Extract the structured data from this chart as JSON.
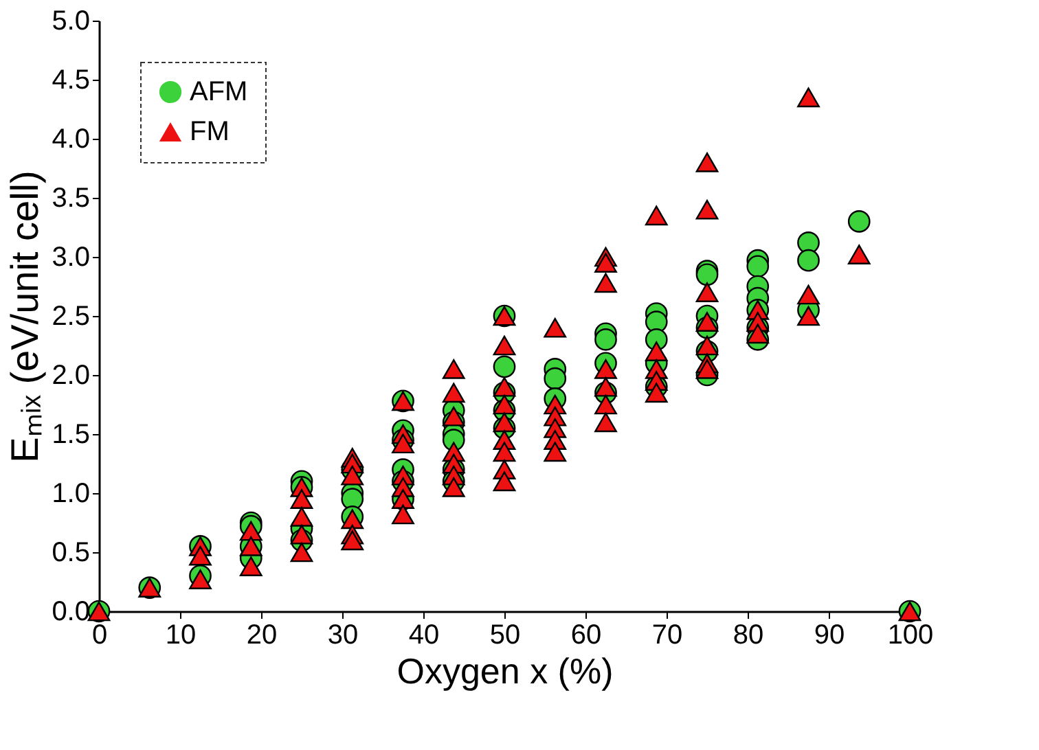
{
  "chart_data": {
    "type": "scatter",
    "xlabel": "Oxygen x (%)",
    "ylabel": "Eₘᵢₓ (eV/unit cell)",
    "xlim": [
      0,
      100
    ],
    "xticks": [
      0,
      10,
      20,
      30,
      40,
      50,
      60,
      70,
      80,
      90,
      100
    ],
    "ylim": [
      0,
      5
    ],
    "yticks": [
      {
        "value": 0,
        "label": "0.0"
      },
      {
        "value": 0.5,
        "label": "0.5"
      },
      {
        "value": 1,
        "label": "1.0"
      },
      {
        "value": 1.5,
        "label": "1.5"
      },
      {
        "value": 2,
        "label": "2.0"
      },
      {
        "value": 2.5,
        "label": "2.5"
      },
      {
        "value": 3,
        "label": "3.0"
      },
      {
        "value": 3.5,
        "label": "3.5"
      },
      {
        "value": 4,
        "label": "4.0"
      },
      {
        "value": 4.5,
        "label": "4.5"
      },
      {
        "value": 5,
        "label": "5.0"
      }
    ],
    "grid": false,
    "legend": "top left",
    "series": [
      {
        "name": "AFM",
        "color": "#3cd23c",
        "marker": "circle",
        "x": [
          0,
          6.25,
          12.5,
          12.5,
          18.75,
          18.75,
          18.75,
          18.75,
          25,
          25,
          25,
          25,
          31.25,
          31.25,
          31.25,
          31.25,
          37.5,
          37.5,
          37.5,
          37.5,
          37.5,
          37.5,
          43.75,
          43.75,
          43.75,
          43.75,
          43.75,
          43.75,
          50,
          50,
          50,
          50,
          50,
          56.25,
          56.25,
          56.25,
          62.5,
          62.5,
          62.5,
          62.5,
          68.75,
          68.75,
          68.75,
          68.75,
          68.75,
          75,
          75,
          75,
          75,
          75,
          75,
          81.25,
          81.25,
          81.25,
          81.25,
          81.25,
          81.25,
          81.25,
          87.5,
          87.5,
          87.5,
          93.75,
          100
        ],
        "values": [
          0,
          0.2,
          0.55,
          0.3,
          0.75,
          0.72,
          0.55,
          0.45,
          1.1,
          1.05,
          0.7,
          0.6,
          1.2,
          1.0,
          0.95,
          0.8,
          1.78,
          1.53,
          1.45,
          1.2,
          1.1,
          0.95,
          1.7,
          1.6,
          1.5,
          1.45,
          1.2,
          1.1,
          2.5,
          2.07,
          1.85,
          1.7,
          1.55,
          2.05,
          1.97,
          1.8,
          2.35,
          2.3,
          2.1,
          1.85,
          2.52,
          2.45,
          2.3,
          2.1,
          1.9,
          2.88,
          2.85,
          2.5,
          2.4,
          2.2,
          2.0,
          2.97,
          2.92,
          2.75,
          2.65,
          2.55,
          2.4,
          2.3,
          3.12,
          2.97,
          2.55,
          3.3,
          0
        ]
      },
      {
        "name": "FM",
        "color": "#ee1111",
        "marker": "triangle",
        "x": [
          0,
          6.25,
          12.5,
          12.5,
          12.5,
          18.75,
          18.75,
          18.75,
          25,
          25,
          25,
          25,
          25,
          31.25,
          31.25,
          31.25,
          31.25,
          31.25,
          31.25,
          37.5,
          37.5,
          37.5,
          37.5,
          37.5,
          37.5,
          37.5,
          43.75,
          43.75,
          43.75,
          43.75,
          43.75,
          43.75,
          43.75,
          50,
          50,
          50,
          50,
          50,
          50,
          50,
          50,
          50,
          56.25,
          56.25,
          56.25,
          56.25,
          56.25,
          56.25,
          62.5,
          62.5,
          62.5,
          62.5,
          62.5,
          62.5,
          62.5,
          68.75,
          68.75,
          68.75,
          68.75,
          68.75,
          75,
          75,
          75,
          75,
          75,
          75,
          75,
          81.25,
          81.25,
          81.25,
          87.5,
          87.5,
          87.5,
          93.75,
          100
        ],
        "values": [
          0,
          0.2,
          0.55,
          0.47,
          0.27,
          0.68,
          0.55,
          0.38,
          1.05,
          0.95,
          0.8,
          0.65,
          0.5,
          1.3,
          1.25,
          1.15,
          0.78,
          0.65,
          0.6,
          1.78,
          1.5,
          1.42,
          1.15,
          1.05,
          0.95,
          0.82,
          2.05,
          1.85,
          1.65,
          1.35,
          1.25,
          1.15,
          1.05,
          2.5,
          2.25,
          1.9,
          1.75,
          1.6,
          1.45,
          1.35,
          1.2,
          1.1,
          2.4,
          1.75,
          1.65,
          1.55,
          1.45,
          1.35,
          3.0,
          2.95,
          2.78,
          2.05,
          1.9,
          1.75,
          1.6,
          3.35,
          2.2,
          2.05,
          1.95,
          1.85,
          3.8,
          3.4,
          2.7,
          2.45,
          2.25,
          2.1,
          2.05,
          2.55,
          2.45,
          2.35,
          4.35,
          2.68,
          2.5,
          3.02,
          0
        ]
      }
    ]
  }
}
